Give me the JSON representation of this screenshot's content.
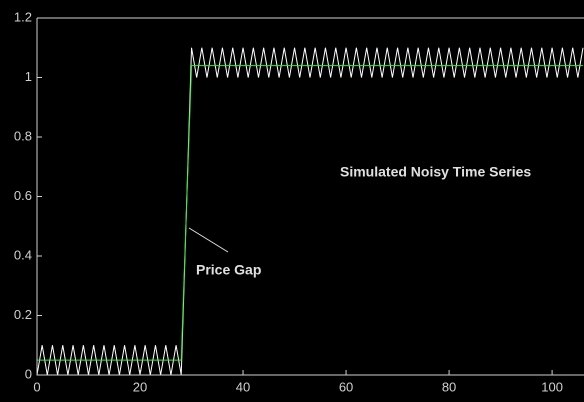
{
  "chart_data": {
    "type": "line",
    "x": [
      0,
      1,
      2,
      3,
      4,
      5,
      6,
      7,
      8,
      9,
      10,
      11,
      12,
      13,
      14,
      15,
      16,
      17,
      18,
      19,
      20,
      21,
      22,
      23,
      24,
      25,
      26,
      27,
      28,
      29,
      30,
      31,
      32,
      33,
      34,
      35,
      36,
      37,
      38,
      39,
      40,
      41,
      42,
      43,
      44,
      45,
      46,
      47,
      48,
      49,
      50,
      51,
      52,
      53,
      54,
      55,
      56,
      57,
      58,
      59,
      60,
      61,
      62,
      63,
      64,
      65,
      66,
      67,
      68,
      69,
      70,
      71,
      72,
      73,
      74,
      75,
      76,
      77,
      78,
      79,
      80,
      81,
      82,
      83,
      84,
      85,
      86,
      87,
      88,
      89,
      90,
      91,
      92,
      93,
      94,
      95,
      96,
      97,
      98,
      99,
      100,
      101,
      102,
      103,
      104,
      105,
      106
    ],
    "series": [
      {
        "color": "#ffffff",
        "values": [
          0,
          0.1,
          0,
          0.1,
          0,
          0.1,
          0,
          0.1,
          0,
          0.1,
          0,
          0.1,
          0,
          0.1,
          0,
          0.1,
          0,
          0.1,
          0,
          0.1,
          0,
          0.1,
          0,
          0.1,
          0,
          0.1,
          0,
          0.1,
          0,
          0.55,
          1.1,
          1,
          1.1,
          1,
          1.1,
          1,
          1.1,
          1,
          1.1,
          1,
          1.1,
          1,
          1.1,
          1,
          1.1,
          1,
          1.1,
          1,
          1.1,
          1,
          1.1,
          1,
          1.1,
          1,
          1.1,
          1,
          1.1,
          1,
          1.1,
          1,
          1.1,
          1,
          1.1,
          1,
          1.1,
          1,
          1.1,
          1,
          1.1,
          1,
          1.1,
          1,
          1.1,
          1,
          1.1,
          1,
          1.1,
          1,
          1.1,
          1,
          1.1,
          1,
          1.1,
          1,
          1.1,
          1,
          1.1,
          1,
          1.1,
          1,
          1.1,
          1,
          1.1,
          1,
          1.1,
          1,
          1.1,
          1,
          1.1,
          1,
          1.1,
          1,
          1.1,
          1,
          1.1,
          1,
          1.1
        ]
      },
      {
        "color": "#33ee33",
        "values": [
          0.05,
          0.05,
          0.05,
          0.05,
          0.05,
          0.05,
          0.05,
          0.05,
          0.05,
          0.05,
          0.05,
          0.05,
          0.05,
          0.05,
          0.05,
          0.05,
          0.05,
          0.05,
          0.05,
          0.05,
          0.05,
          0.05,
          0.05,
          0.05,
          0.05,
          0.05,
          0.05,
          0.05,
          0.05,
          0.55,
          1.04,
          1.04,
          1.04,
          1.04,
          1.04,
          1.04,
          1.04,
          1.04,
          1.04,
          1.04,
          1.04,
          1.04,
          1.04,
          1.04,
          1.04,
          1.04,
          1.04,
          1.04,
          1.04,
          1.04,
          1.04,
          1.04,
          1.04,
          1.04,
          1.04,
          1.04,
          1.04,
          1.04,
          1.04,
          1.04,
          1.04,
          1.04,
          1.04,
          1.04,
          1.04,
          1.04,
          1.04,
          1.04,
          1.04,
          1.04,
          1.04,
          1.04,
          1.04,
          1.04,
          1.04,
          1.04,
          1.04,
          1.04,
          1.04,
          1.04,
          1.04,
          1.04,
          1.04,
          1.04,
          1.04,
          1.04,
          1.04,
          1.04,
          1.04,
          1.04,
          1.04,
          1.04,
          1.04,
          1.04,
          1.04,
          1.04,
          1.04,
          1.04,
          1.04,
          1.04,
          1.04,
          1.04,
          1.04,
          1.04,
          1.04,
          1.04,
          1.04
        ]
      }
    ],
    "annotations": [
      "Simulated Noisy Time Series",
      "Price Gap"
    ],
    "xlim": [
      0,
      106
    ],
    "xticks": [
      0,
      20,
      40,
      60,
      80,
      100
    ],
    "ylim": [
      0,
      1.2
    ],
    "yticks": [
      0,
      0.2,
      0.4,
      0.6,
      0.8,
      1,
      1.2
    ],
    "grid": false
  }
}
